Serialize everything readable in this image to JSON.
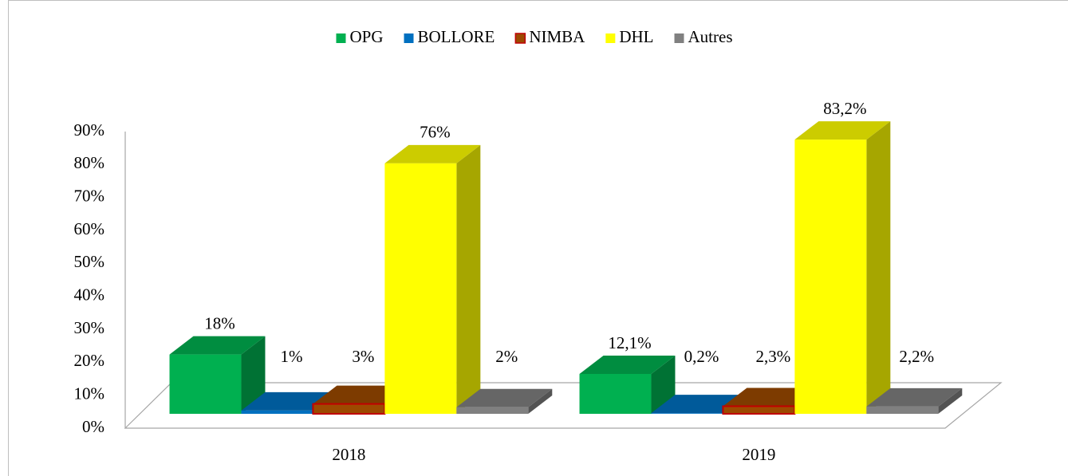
{
  "chart_data": {
    "type": "bar3d",
    "categories": [
      "2018",
      "2019"
    ],
    "series": [
      {
        "name": "OPG",
        "color": "#00b050",
        "values": [
          18,
          12.1
        ],
        "value_labels": [
          "18%",
          "12,1%"
        ]
      },
      {
        "name": "BOLLORE",
        "color": "#0070c0",
        "values": [
          1,
          0.2
        ],
        "value_labels": [
          "1%",
          "0,2%"
        ]
      },
      {
        "name": "NIMBA",
        "color": "#9c4a00",
        "edge": "#c00000",
        "values": [
          3,
          2.3
        ],
        "value_labels": [
          "3%",
          "2,3%"
        ]
      },
      {
        "name": "DHL",
        "color": "#ffff00",
        "values": [
          76,
          83.2
        ],
        "value_labels": [
          "76%",
          "83,2%"
        ]
      },
      {
        "name": "Autres",
        "color": "#808080",
        "values": [
          2,
          2.2
        ],
        "value_labels": [
          "2%",
          "2,2%"
        ]
      }
    ],
    "ylim": [
      0,
      90
    ],
    "yticks": [
      {
        "value": 0,
        "label": "0%"
      },
      {
        "value": 10,
        "label": "10%"
      },
      {
        "value": 20,
        "label": "20%"
      },
      {
        "value": 30,
        "label": "30%"
      },
      {
        "value": 40,
        "label": "40%"
      },
      {
        "value": 50,
        "label": "50%"
      },
      {
        "value": 60,
        "label": "60%"
      },
      {
        "value": 70,
        "label": "70%"
      },
      {
        "value": 80,
        "label": "80%"
      },
      {
        "value": 90,
        "label": "90%"
      }
    ],
    "legend": "top"
  }
}
